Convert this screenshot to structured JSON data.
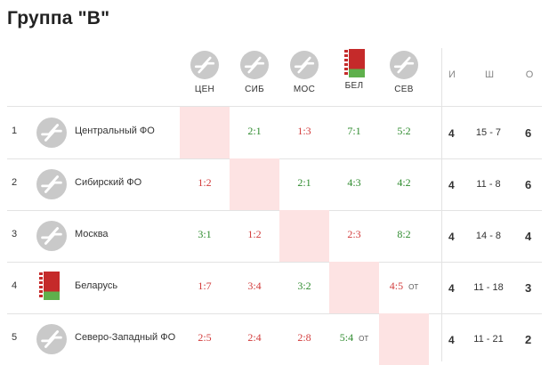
{
  "title": "Группа \"B\"",
  "columns": [
    {
      "abbr": "ЦЕН",
      "icon": "hockey-sticks-icon"
    },
    {
      "abbr": "СИБ",
      "icon": "hockey-sticks-icon"
    },
    {
      "abbr": "МОС",
      "icon": "hockey-sticks-icon"
    },
    {
      "abbr": "БЕЛ",
      "icon": "belarus-flag-icon"
    },
    {
      "abbr": "СЕВ",
      "icon": "hockey-sticks-icon"
    }
  ],
  "stats_headers": {
    "games": "И",
    "goals": "Ш",
    "points": "О"
  },
  "rows": [
    {
      "rank": "1",
      "name": "Центральный ФО",
      "icon": "hockey-sticks-icon",
      "results": [
        null,
        {
          "score": "2:1",
          "res": "win",
          "ot": ""
        },
        {
          "score": "1:3",
          "res": "loss",
          "ot": ""
        },
        {
          "score": "7:1",
          "res": "win",
          "ot": ""
        },
        {
          "score": "5:2",
          "res": "win",
          "ot": ""
        }
      ],
      "games": "4",
      "goals": "15 - 7",
      "points": "6"
    },
    {
      "rank": "2",
      "name": "Сибирский ФО",
      "icon": "hockey-sticks-icon",
      "results": [
        {
          "score": "1:2",
          "res": "loss",
          "ot": ""
        },
        null,
        {
          "score": "2:1",
          "res": "win",
          "ot": ""
        },
        {
          "score": "4:3",
          "res": "win",
          "ot": ""
        },
        {
          "score": "4:2",
          "res": "win",
          "ot": ""
        }
      ],
      "games": "4",
      "goals": "11 - 8",
      "points": "6"
    },
    {
      "rank": "3",
      "name": "Москва",
      "icon": "hockey-sticks-icon",
      "results": [
        {
          "score": "3:1",
          "res": "win",
          "ot": ""
        },
        {
          "score": "1:2",
          "res": "loss",
          "ot": ""
        },
        null,
        {
          "score": "2:3",
          "res": "loss",
          "ot": ""
        },
        {
          "score": "8:2",
          "res": "win",
          "ot": ""
        }
      ],
      "games": "4",
      "goals": "14 - 8",
      "points": "4"
    },
    {
      "rank": "4",
      "name": "Беларусь",
      "icon": "belarus-flag-icon",
      "results": [
        {
          "score": "1:7",
          "res": "loss",
          "ot": ""
        },
        {
          "score": "3:4",
          "res": "loss",
          "ot": ""
        },
        {
          "score": "3:2",
          "res": "win",
          "ot": ""
        },
        null,
        {
          "score": "4:5",
          "res": "loss",
          "ot": "ОТ"
        }
      ],
      "games": "4",
      "goals": "11 - 18",
      "points": "3"
    },
    {
      "rank": "5",
      "name": "Северо-Западный ФО",
      "icon": "hockey-sticks-icon",
      "results": [
        {
          "score": "2:5",
          "res": "loss",
          "ot": ""
        },
        {
          "score": "2:4",
          "res": "loss",
          "ot": ""
        },
        {
          "score": "2:8",
          "res": "loss",
          "ot": ""
        },
        {
          "score": "5:4",
          "res": "win",
          "ot": "ОТ"
        },
        null
      ],
      "games": "4",
      "goals": "11 - 21",
      "points": "2"
    }
  ]
}
